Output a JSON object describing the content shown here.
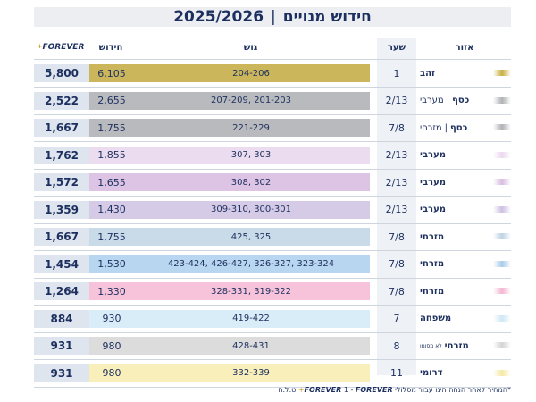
{
  "title": {
    "main": "חידוש מנויים",
    "separator": "|",
    "season": "2025/2026"
  },
  "headers": {
    "area": "אזור",
    "gate": "שער",
    "block": "גוש",
    "renewal": "חידוש",
    "forever": "FOREVER",
    "forever_plus": "+"
  },
  "rows": [
    {
      "area": "זהב",
      "note": "",
      "gate": "1",
      "block": "204-206",
      "renewal": "6,105",
      "forever": "5,800",
      "bar": "#cbb65c",
      "swatch": "#c8b040"
    },
    {
      "area": "כסף",
      "area_sub": "מערבי",
      "note": "",
      "gate": "2/13",
      "block": "201-203 ,207-209",
      "renewal": "2,655",
      "forever": "2,522",
      "bar": "#b9babd",
      "swatch": "#b0b1b5"
    },
    {
      "area": "כסף",
      "area_sub": "מזרחי",
      "note": "",
      "gate": "7/8",
      "block": "221-229",
      "renewal": "1,755",
      "forever": "1,667",
      "bar": "#b9babd",
      "swatch": "#b0b1b5"
    },
    {
      "area": "מערבי",
      "note": "",
      "gate": "2/13",
      "block": "303 ,307",
      "renewal": "1,855",
      "forever": "1,762",
      "bar": "#ecdcef",
      "swatch": "#ecd9ef"
    },
    {
      "area": "מערבי",
      "note": "",
      "gate": "2/13",
      "block": "302 ,308",
      "renewal": "1,655",
      "forever": "1,572",
      "bar": "#ddc3e4",
      "swatch": "#d8bde2"
    },
    {
      "area": "מערבי",
      "note": "",
      "gate": "2/13",
      "block": "300-301 ,309-310",
      "renewal": "1,430",
      "forever": "1,359",
      "bar": "#d6cbe6",
      "swatch": "#cdbfe2"
    },
    {
      "area": "מזרחי",
      "note": "",
      "gate": "7/8",
      "block": "325 ,425",
      "renewal": "1,755",
      "forever": "1,667",
      "bar": "#c9dbe8",
      "swatch": "#bcd2e3"
    },
    {
      "area": "מזרחי",
      "note": "",
      "gate": "7/8",
      "block": "323-324 ,326-327 ,426-427 ,423-424",
      "renewal": "1,530",
      "forever": "1,454",
      "bar": "#b9d6f0",
      "swatch": "#a9cbe9"
    },
    {
      "area": "מזרחי",
      "note": "",
      "gate": "7/8",
      "block": "319-322 ,328-331",
      "renewal": "1,330",
      "forever": "1,264",
      "bar": "#f6c3da",
      "swatch": "#f3b5d1"
    },
    {
      "area": "משפחה",
      "note": "",
      "gate": "7",
      "block": "419-422",
      "renewal": "930",
      "forever": "884",
      "bar": "#d9edf8",
      "swatch": "#cfe8f6"
    },
    {
      "area": "מזרחי",
      "note": "לא מסומן",
      "gate": "8",
      "block": "428-431",
      "renewal": "980",
      "forever": "931",
      "bar": "#dcdcdc",
      "swatch": "#d3d3d3"
    },
    {
      "area": "דרומי",
      "note": "",
      "gate": "11",
      "block": "332-339",
      "renewal": "980",
      "forever": "931",
      "bar": "#f8efba",
      "swatch": "#f5e9a6"
    }
  ],
  "footer": {
    "prefix": "*המחיר לאחר הנחה הינו עבור מסלולי",
    "brand1": "FOREVER",
    "middle": "1 -",
    "brand2": "FOREVER",
    "plus": "+",
    "suffix": "ט.ל.ח"
  }
}
